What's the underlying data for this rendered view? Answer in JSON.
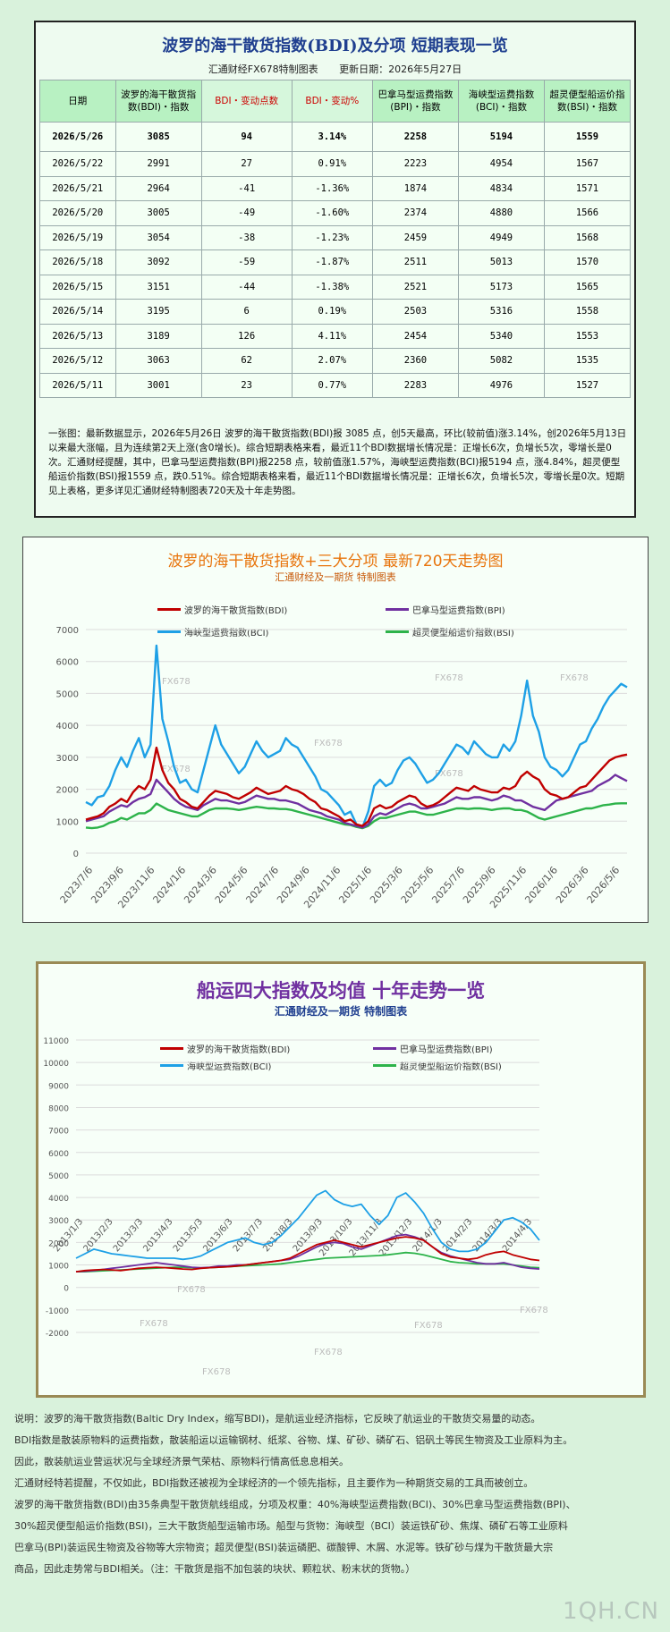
{
  "table_panel": {
    "title": "波罗的海干散货指数(BDI)及分项 短期表现一览",
    "maker": "汇通财经FX678特制图表",
    "update": "更新日期：2026年5月27日",
    "headers": [
      "日期",
      "波罗的海干散货指数(BDI)・指数",
      "BDI・变动点数",
      "BDI・变动%",
      "巴拿马型运费指数(BPI)・指数",
      "海峡型运费指数(BCI)・指数",
      "超灵便型船运价指数(BSI)・指数"
    ],
    "rows": [
      [
        "2026/5/26",
        "3085",
        "94",
        "3.14%",
        "2258",
        "5194",
        "1559"
      ],
      [
        "2026/5/22",
        "2991",
        "27",
        "0.91%",
        "2223",
        "4954",
        "1567"
      ],
      [
        "2026/5/21",
        "2964",
        "-41",
        "-1.36%",
        "1874",
        "4834",
        "1571"
      ],
      [
        "2026/5/20",
        "3005",
        "-49",
        "-1.60%",
        "2374",
        "4880",
        "1566"
      ],
      [
        "2026/5/19",
        "3054",
        "-38",
        "-1.23%",
        "2459",
        "4949",
        "1568"
      ],
      [
        "2026/5/18",
        "3092",
        "-59",
        "-1.87%",
        "2511",
        "5013",
        "1570"
      ],
      [
        "2026/5/15",
        "3151",
        "-44",
        "-1.38%",
        "2521",
        "5173",
        "1565"
      ],
      [
        "2026/5/14",
        "3195",
        "6",
        "0.19%",
        "2503",
        "5316",
        "1558"
      ],
      [
        "2026/5/13",
        "3189",
        "126",
        "4.11%",
        "2454",
        "5340",
        "1553"
      ],
      [
        "2026/5/12",
        "3063",
        "62",
        "2.07%",
        "2360",
        "5082",
        "1535"
      ],
      [
        "2026/5/11",
        "3001",
        "23",
        "0.77%",
        "2283",
        "4976",
        "1527"
      ]
    ],
    "summary": "一张图：最新数据显示，2026年5月26日 波罗的海干散货指数(BDI)报 3085 点，创5天最高，环比(较前值)涨3.14%，创2026年5月13日以来最大涨幅，且为连续第2天上涨(含0增长)。综合短期表格来看，最近11个BDI数据增长情况是：正增长6次，负增长5次，零增长是0次。汇通财经提醒，其中，巴拿马型运费指数(BPI)报2258 点，较前值涨1.57%，海峡型运费指数(BCI)报5194 点，涨4.84%，超灵便型船运价指数(BSI)报1559 点，跌0.51%。综合短期表格来看，最近11个BDI数据增长情况是：正增长6次，负增长5次，零增长是0次。短期见上表格，更多详见汇通财经特制图表720天及十年走势图。"
  },
  "chart_data": [
    {
      "type": "line",
      "title": "波罗的海干散货指数+三大分项 最新720天走势图",
      "subtitle": "汇通财经及一期货 特制图表",
      "watermark": "FX678",
      "ylim": [
        0,
        7000
      ],
      "yticks": [
        "0",
        "1000",
        "2000",
        "3000",
        "4000",
        "5000",
        "6000",
        "7000"
      ],
      "xticks": [
        "2023/7/6",
        "2023/9/6",
        "2023/11/6",
        "2024/1/6",
        "2024/3/6",
        "2024/5/6",
        "2024/7/6",
        "2024/9/6",
        "2024/11/6",
        "2025/1/6",
        "2025/3/6",
        "2025/5/6",
        "2025/7/6",
        "2025/9/6",
        "2025/11/6",
        "2026/1/6",
        "2026/3/6",
        "2026/5/6"
      ],
      "series": [
        {
          "name": "波罗的海干散货指数(BDI)",
          "color": "#c00000",
          "values": [
            1050,
            1100,
            1150,
            1250,
            1450,
            1550,
            1700,
            1600,
            1900,
            2100,
            2000,
            2300,
            3300,
            2600,
            2200,
            2000,
            1700,
            1600,
            1450,
            1400,
            1600,
            1800,
            1950,
            1900,
            1850,
            1750,
            1700,
            1800,
            1900,
            2050,
            1950,
            1850,
            1900,
            1950,
            2100,
            2000,
            1950,
            1850,
            1700,
            1600,
            1400,
            1350,
            1250,
            1150,
            1000,
            1050,
            900,
            850,
            1000,
            1400,
            1500,
            1400,
            1450,
            1600,
            1700,
            1800,
            1750,
            1550,
            1450,
            1500,
            1600,
            1750,
            1900,
            2050,
            2000,
            1950,
            2100,
            2000,
            1950,
            1900,
            1900,
            2050,
            2000,
            2100,
            2400,
            2550,
            2400,
            2300,
            2000,
            1850,
            1800,
            1700,
            1750,
            1900,
            2050,
            2100,
            2300,
            2500,
            2700,
            2900,
            3000,
            3050,
            3085
          ]
        },
        {
          "name": "巴拿马型运费指数(BPI)",
          "color": "#7030a0",
          "values": [
            1000,
            1050,
            1100,
            1150,
            1300,
            1400,
            1500,
            1450,
            1600,
            1700,
            1750,
            1850,
            2300,
            2100,
            1900,
            1700,
            1550,
            1450,
            1400,
            1350,
            1500,
            1600,
            1700,
            1650,
            1650,
            1600,
            1550,
            1600,
            1700,
            1800,
            1750,
            1700,
            1700,
            1650,
            1650,
            1600,
            1550,
            1450,
            1350,
            1300,
            1250,
            1150,
            1100,
            1050,
            950,
            900,
            850,
            800,
            900,
            1150,
            1250,
            1200,
            1300,
            1400,
            1500,
            1550,
            1500,
            1400,
            1400,
            1450,
            1500,
            1550,
            1650,
            1750,
            1700,
            1700,
            1750,
            1750,
            1700,
            1650,
            1700,
            1800,
            1750,
            1650,
            1650,
            1550,
            1450,
            1400,
            1350,
            1500,
            1650,
            1700,
            1750,
            1800,
            1850,
            1900,
            1950,
            2100,
            2200,
            2300,
            2450,
            2350,
            2258
          ]
        },
        {
          "name": "海峡型运费指数(BCI)",
          "color": "#1ea0e6",
          "values": [
            1600,
            1500,
            1750,
            1800,
            2100,
            2600,
            3000,
            2700,
            3200,
            3600,
            3000,
            3400,
            6500,
            4200,
            3500,
            2700,
            2200,
            2300,
            2000,
            1900,
            2600,
            3300,
            4000,
            3400,
            3100,
            2800,
            2500,
            2700,
            3100,
            3500,
            3200,
            3000,
            3100,
            3200,
            3600,
            3400,
            3300,
            3000,
            2700,
            2400,
            2000,
            1900,
            1700,
            1500,
            1200,
            1300,
            900,
            800,
            1300,
            2100,
            2300,
            2100,
            2200,
            2600,
            2900,
            3000,
            2800,
            2500,
            2200,
            2300,
            2500,
            2800,
            3100,
            3400,
            3300,
            3100,
            3500,
            3300,
            3100,
            3000,
            3000,
            3400,
            3200,
            3500,
            4300,
            5400,
            4300,
            3800,
            3000,
            2700,
            2600,
            2400,
            2600,
            3000,
            3400,
            3500,
            3900,
            4200,
            4600,
            4900,
            5100,
            5300,
            5194
          ]
        },
        {
          "name": "超灵便型船运价指数(BSI)",
          "color": "#2db34a",
          "values": [
            800,
            780,
            800,
            850,
            950,
            1000,
            1100,
            1050,
            1150,
            1250,
            1250,
            1350,
            1550,
            1450,
            1350,
            1300,
            1250,
            1200,
            1150,
            1150,
            1250,
            1350,
            1400,
            1400,
            1400,
            1380,
            1350,
            1380,
            1420,
            1450,
            1430,
            1400,
            1400,
            1380,
            1380,
            1350,
            1300,
            1250,
            1200,
            1150,
            1100,
            1050,
            1000,
            950,
            900,
            880,
            820,
            780,
            850,
            1000,
            1100,
            1100,
            1150,
            1200,
            1250,
            1300,
            1300,
            1250,
            1200,
            1200,
            1250,
            1300,
            1350,
            1400,
            1400,
            1380,
            1400,
            1400,
            1380,
            1350,
            1380,
            1400,
            1400,
            1350,
            1350,
            1300,
            1200,
            1100,
            1050,
            1100,
            1150,
            1200,
            1250,
            1300,
            1350,
            1400,
            1400,
            1450,
            1500,
            1520,
            1550,
            1560,
            1559
          ]
        }
      ]
    },
    {
      "type": "line",
      "title": "船运四大指数及均值 十年走势一览",
      "subtitle": "汇通财经及一期货 特制图表",
      "watermark": "FX678",
      "ylim": [
        -2000,
        11000
      ],
      "yticks": [
        "-2000",
        "-1000",
        "0",
        "1000",
        "2000",
        "3000",
        "4000",
        "5000",
        "6000",
        "7000",
        "8000",
        "9000",
        "10000",
        "11000"
      ],
      "xticks": [
        "2013/1/3",
        "2013/2/3",
        "2013/3/3",
        "2013/4/3",
        "2013/5/3",
        "2013/6/3",
        "2013/7/3",
        "2013/8/3",
        "2013/9/3",
        "2013/10/3",
        "2013/11/3",
        "2013/12/3",
        "2014/1/3",
        "2014/2/3",
        "2014/3/3",
        "2014/4/3"
      ],
      "series": [
        {
          "name": "波罗的海干散货指数(BDI)",
          "color": "#c00000",
          "values": [
            700,
            750,
            780,
            800,
            780,
            750,
            800,
            850,
            880,
            900,
            880,
            850,
            820,
            800,
            850,
            880,
            900,
            920,
            950,
            1000,
            1050,
            1100,
            1150,
            1200,
            1300,
            1500,
            1700,
            1900,
            2000,
            2100,
            2000,
            1900,
            1800,
            1900,
            2000,
            2100,
            2200,
            2250,
            2200,
            2100,
            1800,
            1500,
            1350,
            1300,
            1250,
            1300,
            1450,
            1550,
            1600,
            1450,
            1350,
            1250,
            1200
          ]
        },
        {
          "name": "巴拿马型运费指数(BPI)",
          "color": "#7030a0",
          "values": [
            700,
            720,
            750,
            800,
            850,
            900,
            950,
            1000,
            1050,
            1100,
            1050,
            1000,
            950,
            900,
            880,
            900,
            950,
            950,
            1000,
            1000,
            1050,
            1100,
            1150,
            1200,
            1250,
            1400,
            1600,
            1800,
            1950,
            2000,
            1950,
            1800,
            1700,
            1850,
            2000,
            2150,
            2300,
            2350,
            2250,
            2100,
            1800,
            1550,
            1400,
            1300,
            1200,
            1100,
            1050,
            1050,
            1100,
            1000,
            900,
            850,
            820
          ]
        },
        {
          "name": "海峡型运费指数(BCI)",
          "color": "#1ea0e6",
          "values": [
            1300,
            1500,
            1700,
            1600,
            1500,
            1450,
            1400,
            1350,
            1300,
            1300,
            1300,
            1300,
            1250,
            1300,
            1400,
            1600,
            1800,
            2000,
            2100,
            2200,
            2000,
            1900,
            2000,
            2300,
            2700,
            3100,
            3600,
            4100,
            4300,
            3900,
            3700,
            3600,
            3700,
            3200,
            2800,
            3200,
            4000,
            4200,
            3800,
            3300,
            2600,
            2000,
            1700,
            1600,
            1600,
            1700,
            2000,
            2500,
            3000,
            3100,
            2900,
            2600,
            2100
          ]
        },
        {
          "name": "超灵便型船运价指数(BSI)",
          "color": "#2db34a",
          "values": [
            700,
            700,
            720,
            740,
            760,
            780,
            800,
            820,
            840,
            860,
            880,
            900,
            900,
            880,
            860,
            880,
            900,
            920,
            940,
            960,
            980,
            1000,
            1020,
            1050,
            1100,
            1150,
            1200,
            1250,
            1300,
            1320,
            1340,
            1360,
            1380,
            1400,
            1420,
            1450,
            1500,
            1550,
            1520,
            1450,
            1350,
            1250,
            1150,
            1100,
            1080,
            1050,
            1050,
            1050,
            1050,
            1000,
            950,
            900,
            880
          ]
        }
      ]
    }
  ],
  "notes": [
    "说明：波罗的海干散货指数(Baltic Dry Index，缩写BDI)，是航运业经济指标，它反映了航运业的干散货交易量的动态。",
    "BDI指数是散装原物料的运费指数，散装船运以运输钢材、纸浆、谷物、煤、矿砂、磷矿石、铝矾土等民生物资及工业原料为主。",
    "因此，散装航运业营运状况与全球经济景气荣枯、原物料行情高低息息相关。",
    "汇通财经特若提醒，不仅如此，BDI指数还被视为全球经济的一个领先指标，且主要作为一种期货交易的工具而被创立。",
    "波罗的海干散货指数(BDI)由35条典型干散货航线组成，分项及权重：40%海峡型运费指数(BCI)、30%巴拿马型运费指数(BPI)、",
    "30%超灵便型船运价指数(BSI)，三大干散货船型运输市场。船型与货物：海峡型（BCI）装运铁矿砂、焦煤、磷矿石等工业原料",
    "巴拿马(BPI)装运民生物资及谷物等大宗物资；超灵便型(BSI)装运磷肥、碳酸钾、木屑、水泥等。铁矿砂与煤为干散货最大宗",
    "商品，因此走势常与BDI相关。（注：干散货是指不加包装的块状、颗粒状、粉末状的货物。）"
  ],
  "site_watermark": "1QH.CN"
}
